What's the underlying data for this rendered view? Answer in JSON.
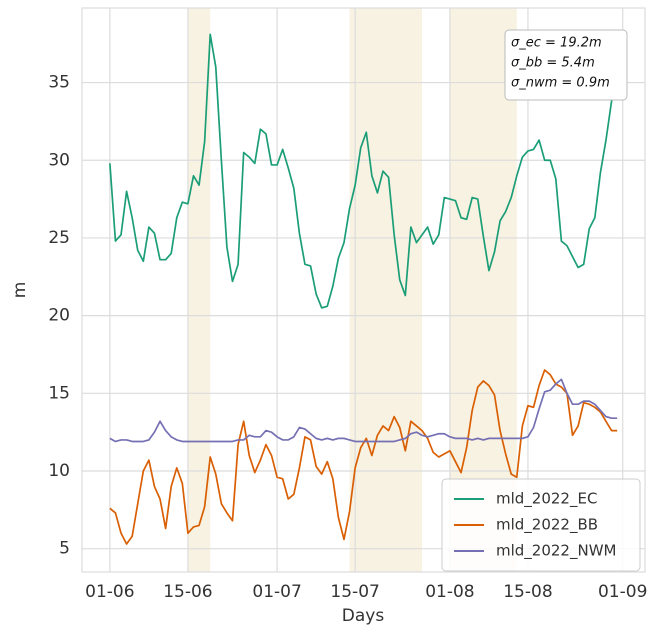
{
  "chart_data": {
    "type": "line",
    "x_label": "Days",
    "y_label": "m",
    "x": [
      "01-06",
      "02-06",
      "03-06",
      "04-06",
      "05-06",
      "06-06",
      "07-06",
      "08-06",
      "09-06",
      "10-06",
      "11-06",
      "12-06",
      "13-06",
      "14-06",
      "15-06",
      "16-06",
      "17-06",
      "18-06",
      "19-06",
      "20-06",
      "21-06",
      "22-06",
      "23-06",
      "24-06",
      "25-06",
      "26-06",
      "27-06",
      "28-06",
      "29-06",
      "30-06",
      "01-07",
      "02-07",
      "03-07",
      "04-07",
      "05-07",
      "06-07",
      "07-07",
      "08-07",
      "09-07",
      "10-07",
      "11-07",
      "12-07",
      "13-07",
      "14-07",
      "15-07",
      "16-07",
      "17-07",
      "18-07",
      "19-07",
      "20-07",
      "21-07",
      "22-07",
      "23-07",
      "24-07",
      "25-07",
      "26-07",
      "27-07",
      "28-07",
      "29-07",
      "30-07",
      "31-07",
      "01-08",
      "02-08",
      "03-08",
      "04-08",
      "05-08",
      "06-08",
      "07-08",
      "08-08",
      "09-08",
      "10-08",
      "11-08",
      "12-08",
      "13-08",
      "14-08",
      "15-08",
      "16-08",
      "17-08",
      "18-08",
      "19-08",
      "20-08",
      "21-08",
      "22-08",
      "23-08",
      "24-08",
      "25-08",
      "26-08",
      "27-08",
      "28-08",
      "29-08",
      "30-08",
      "31-08"
    ],
    "series": [
      {
        "name": "mld_2022_EC",
        "color": "#1b9e77",
        "values": [
          29.8,
          24.8,
          25.2,
          28.0,
          26.3,
          24.2,
          23.5,
          25.7,
          25.3,
          23.6,
          23.6,
          24.0,
          26.3,
          27.3,
          27.2,
          29.0,
          28.4,
          31.2,
          38.1,
          36.0,
          30.0,
          24.4,
          22.2,
          23.3,
          30.5,
          30.2,
          29.8,
          32.0,
          31.7,
          29.7,
          29.7,
          30.7,
          29.5,
          28.2,
          25.3,
          23.3,
          23.2,
          21.4,
          20.5,
          20.6,
          21.9,
          23.7,
          24.7,
          26.9,
          28.4,
          30.8,
          31.8,
          29.0,
          27.9,
          29.3,
          28.9,
          25.2,
          22.3,
          21.3,
          25.7,
          24.7,
          25.2,
          25.7,
          24.6,
          25.2,
          27.6,
          27.5,
          27.4,
          26.3,
          26.2,
          27.6,
          27.5,
          25.1,
          22.9,
          24.1,
          26.1,
          26.7,
          27.6,
          29.0,
          30.2,
          30.6,
          30.7,
          31.3,
          30.0,
          30.0,
          28.8,
          24.8,
          24.5,
          23.8,
          23.1,
          23.3,
          25.6,
          26.3,
          29.2,
          31.3,
          33.8,
          35.3
        ]
      },
      {
        "name": "mld_2022_BB",
        "color": "#d95f02",
        "values": [
          7.6,
          7.3,
          6.0,
          5.3,
          5.8,
          7.9,
          10.0,
          10.7,
          9.0,
          8.2,
          6.3,
          9.0,
          10.2,
          9.2,
          6.0,
          6.4,
          6.5,
          7.7,
          10.9,
          9.8,
          7.9,
          7.3,
          6.8,
          11.7,
          13.2,
          11.0,
          9.9,
          10.7,
          11.7,
          11.0,
          9.6,
          9.5,
          8.2,
          8.5,
          10.2,
          12.2,
          12.0,
          10.3,
          9.8,
          10.6,
          9.5,
          7.0,
          5.6,
          7.4,
          10.2,
          11.5,
          12.1,
          11.0,
          12.3,
          12.9,
          12.6,
          13.5,
          12.8,
          11.3,
          13.2,
          12.9,
          12.6,
          12.1,
          11.2,
          10.9,
          11.1,
          11.3,
          10.6,
          9.9,
          11.5,
          13.9,
          15.4,
          15.8,
          15.5,
          14.9,
          12.6,
          11.1,
          9.8,
          9.6,
          12.9,
          14.2,
          14.1,
          15.5,
          16.5,
          16.2,
          15.6,
          15.4,
          15.0,
          12.3,
          12.9,
          14.4,
          14.3,
          14.1,
          13.8,
          13.2,
          12.6,
          12.6
        ]
      },
      {
        "name": "mld_2022_NWM",
        "color": "#7570b3",
        "values": [
          12.1,
          11.9,
          12.0,
          12.0,
          11.9,
          11.9,
          11.9,
          12.0,
          12.5,
          13.2,
          12.6,
          12.2,
          12.0,
          11.9,
          11.9,
          11.9,
          11.9,
          11.9,
          11.9,
          11.9,
          11.9,
          11.9,
          11.9,
          12.0,
          12.0,
          12.3,
          12.2,
          12.2,
          12.6,
          12.5,
          12.2,
          12.0,
          12.0,
          12.2,
          12.8,
          12.7,
          12.4,
          12.1,
          12.0,
          12.1,
          12.0,
          12.1,
          12.1,
          12.0,
          11.9,
          11.9,
          11.9,
          11.9,
          11.9,
          11.9,
          11.9,
          11.9,
          12.0,
          12.1,
          12.4,
          12.5,
          12.3,
          12.2,
          12.3,
          12.4,
          12.4,
          12.2,
          12.1,
          12.1,
          12.1,
          12.0,
          12.1,
          12.0,
          12.1,
          12.1,
          12.1,
          12.1,
          12.1,
          12.1,
          12.1,
          12.2,
          12.8,
          14.0,
          15.1,
          15.2,
          15.6,
          15.9,
          15.0,
          14.3,
          14.3,
          14.5,
          14.5,
          14.3,
          13.9,
          13.5,
          13.4,
          13.4
        ]
      }
    ],
    "xlim": [
      "27-05",
      "05-09"
    ],
    "xticks": [
      "01-06",
      "15-06",
      "01-07",
      "15-07",
      "01-08",
      "15-08",
      "01-09"
    ],
    "ylim": [
      3.5,
      39.8
    ],
    "yticks": [
      5,
      10,
      15,
      20,
      25,
      30,
      35
    ],
    "grid": true,
    "legend": "lower right",
    "shaded_spans": [
      {
        "start": "15-06",
        "end": "19-06",
        "color": "#f7f2e2"
      },
      {
        "start": "14-07",
        "end": "27-07",
        "color": "#f7f2e2"
      },
      {
        "start": "01-08",
        "end": "13-08",
        "color": "#f7f2e2"
      }
    ],
    "annotation": [
      "σ_ec = 19.2m",
      "σ_bb = 5.4m",
      "σ_nwm = 0.9m"
    ]
  }
}
